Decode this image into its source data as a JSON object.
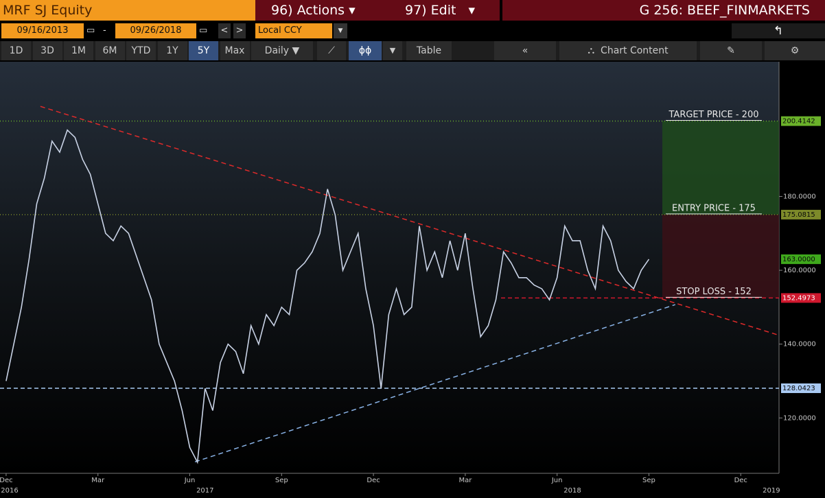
{
  "header": {
    "ticker": "MRF SJ Equity",
    "actions": "96) Actions",
    "edit": "97) Edit",
    "page": "G 256: BEEF_FINMARKETS"
  },
  "toolbar": {
    "start_date": "09/16/2013",
    "end_date": "09/26/2018",
    "currency": "Local CCY",
    "ranges": [
      "1D",
      "3D",
      "1M",
      "6M",
      "YTD",
      "1Y",
      "5Y",
      "Max"
    ],
    "frequency": "Daily",
    "table": "Table",
    "chart_content": "Chart Content"
  },
  "chart_data": {
    "type": "line",
    "color": "#c9d3e6",
    "x": [
      0,
      0.25,
      0.5,
      0.75,
      1,
      1.25,
      1.5,
      1.75,
      2,
      2.25,
      2.5,
      2.75,
      3,
      3.25,
      3.5,
      3.75,
      4,
      4.25,
      4.5,
      4.75,
      5,
      5.25,
      5.5,
      5.75,
      6,
      6.25,
      6.5,
      6.75,
      7,
      7.25,
      7.5,
      7.75,
      8,
      8.25,
      8.5,
      8.75,
      9,
      9.25,
      9.5,
      9.75,
      10,
      10.25,
      10.5,
      10.75,
      11,
      11.25,
      11.5,
      11.75,
      12,
      12.25,
      12.5,
      12.75,
      13,
      13.25,
      13.5,
      13.75,
      14,
      14.25,
      14.5,
      14.75,
      15,
      15.25,
      15.5,
      15.75,
      16,
      16.25,
      16.5,
      16.75,
      17,
      17.25,
      17.5,
      17.75,
      18,
      18.25,
      18.5,
      18.75,
      19,
      19.25,
      19.5,
      19.75,
      20,
      20.25,
      20.5,
      20.75,
      21
    ],
    "values": [
      130,
      140,
      150,
      163,
      178,
      185,
      195,
      192,
      198,
      196,
      190,
      186,
      178,
      170,
      168,
      172,
      170,
      164,
      158,
      152,
      140,
      135,
      130,
      122,
      112,
      108,
      128,
      122,
      135,
      140,
      138,
      132,
      145,
      140,
      148,
      145,
      150,
      148,
      160,
      162,
      165,
      170,
      182,
      175,
      160,
      165,
      170,
      155,
      145,
      128,
      148,
      155,
      148,
      150,
      172,
      160,
      165,
      158,
      168,
      160,
      170,
      155,
      142,
      145,
      152,
      165,
      162,
      158,
      158,
      156,
      155,
      152,
      158,
      172,
      168,
      168,
      160,
      155,
      172,
      168,
      160,
      157,
      155,
      160,
      163
    ],
    "xlim": [
      -0.2,
      25.25
    ],
    "ylim": [
      105,
      216.5
    ],
    "yticks": [
      {
        "value": 180,
        "label": "180.0000"
      },
      {
        "value": 160,
        "label": "160.0000"
      },
      {
        "value": 140,
        "label": "140.0000"
      },
      {
        "value": 120,
        "label": "120.0000"
      }
    ],
    "xticks": [
      {
        "value": 0,
        "label": "Dec"
      },
      {
        "value": 3,
        "label": "Mar"
      },
      {
        "value": 6,
        "label": "Jun"
      },
      {
        "value": 9,
        "label": "Sep"
      },
      {
        "value": 12,
        "label": "Dec"
      },
      {
        "value": 15,
        "label": "Mar"
      },
      {
        "value": 18,
        "label": "Jun"
      },
      {
        "value": 21,
        "label": "Sep"
      },
      {
        "value": 24,
        "label": "Dec"
      }
    ],
    "year_labels": [
      {
        "value": 0,
        "label": "2016"
      },
      {
        "value": 6.5,
        "label": "2017"
      },
      {
        "value": 18.5,
        "label": "2018"
      },
      {
        "value": 25,
        "label": "2019"
      }
    ],
    "levels": [
      {
        "value": 200.4142,
        "color": "#6bb22a",
        "text": "TARGET PRICE - 200"
      },
      {
        "value": 175.0815,
        "color": "#7d8a2a",
        "text": "ENTRY PRICE - 175"
      },
      {
        "value": 163,
        "label": "163.0000",
        "color": "#3fa81c"
      },
      {
        "value": 152.4973,
        "color": "#d0182e",
        "text": "STOP LOSS - 152"
      },
      {
        "value": 128.0423,
        "color": "#a9c9f2"
      }
    ],
    "trendlines": [
      {
        "color": "#e02a2a",
        "x": [
          1.12,
          25.25
        ],
        "values": [
          204.4,
          142.4
        ]
      },
      {
        "color": "#8ab4e8",
        "x": [
          6.17,
          21.86
        ],
        "values": [
          108.1,
          150.7
        ]
      }
    ]
  }
}
